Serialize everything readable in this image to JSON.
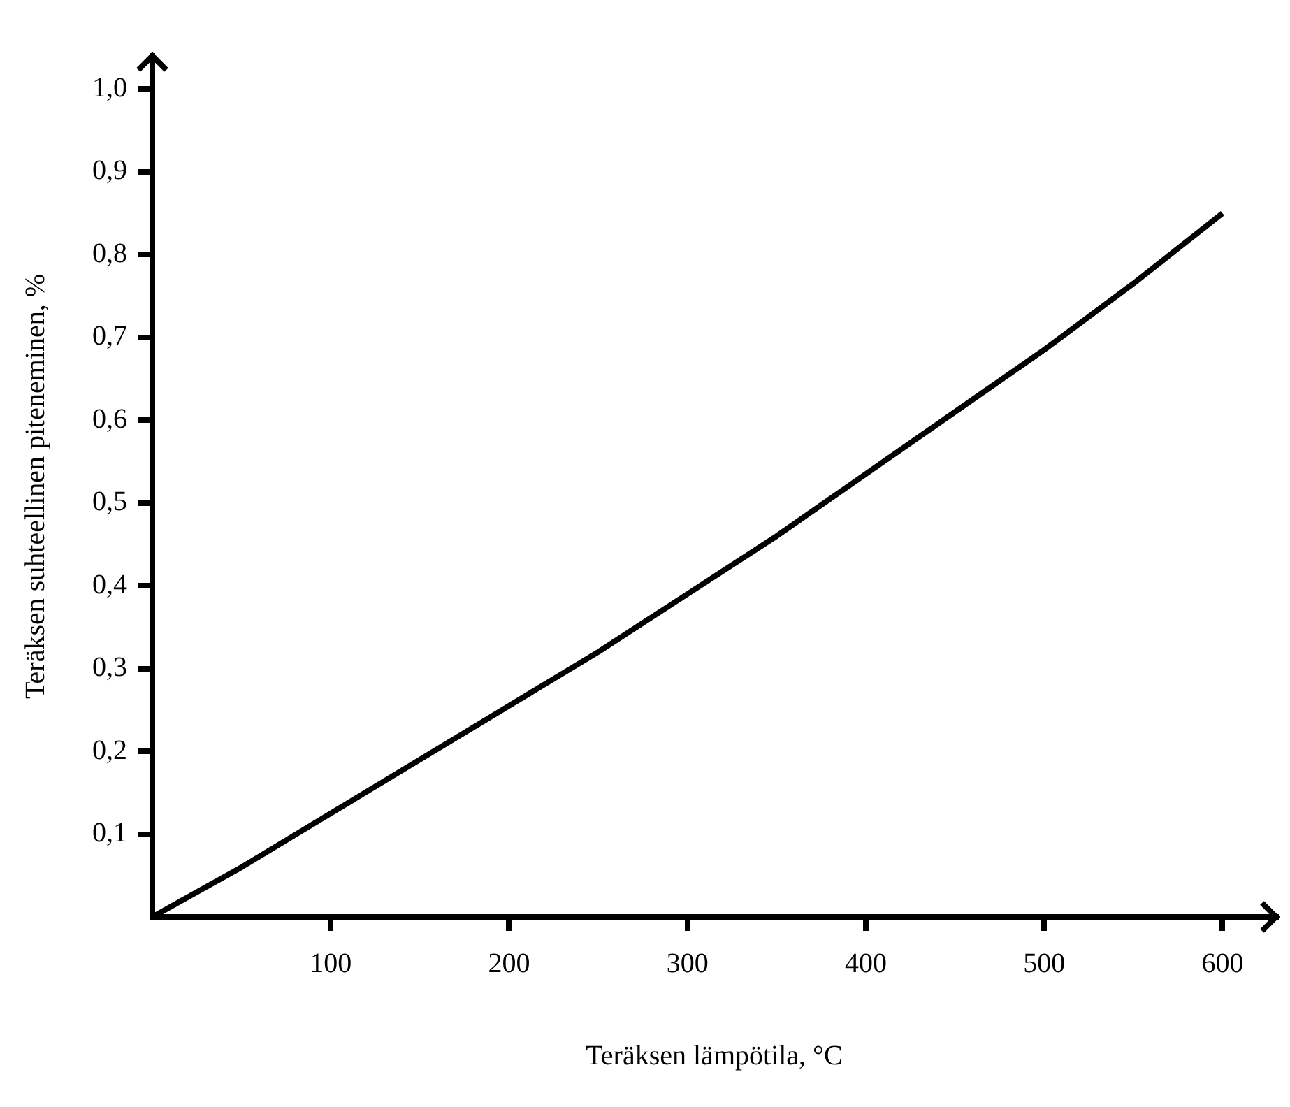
{
  "chart_data": {
    "type": "line",
    "xlabel": "Teräksen lämpötila, °C",
    "ylabel": "Teräksen suhteellinen piteneminen, %",
    "x": [
      0,
      50,
      100,
      150,
      200,
      250,
      300,
      350,
      400,
      450,
      500,
      550,
      600
    ],
    "series": [
      {
        "color": "#000000",
        "values": [
          0,
          0.06,
          0.125,
          0.19,
          0.255,
          0.32,
          0.39,
          0.46,
          0.535,
          0.61,
          0.685,
          0.765,
          0.85
        ]
      }
    ],
    "xlim": [
      0,
      630
    ],
    "ylim": [
      0,
      1.04
    ],
    "xticks": [
      100,
      200,
      300,
      400,
      500,
      600
    ],
    "yticks": [
      {
        "value": 0.1,
        "label": "0,1"
      },
      {
        "value": 0.2,
        "label": "0,2"
      },
      {
        "value": 0.3,
        "label": "0,3"
      },
      {
        "value": 0.4,
        "label": "0,4"
      },
      {
        "value": 0.5,
        "label": "0,5"
      },
      {
        "value": 0.6,
        "label": "0,6"
      },
      {
        "value": 0.7,
        "label": "0,7"
      },
      {
        "value": 0.8,
        "label": "0,8"
      },
      {
        "value": 0.9,
        "label": "0,9"
      },
      {
        "value": 1.0,
        "label": "1,0"
      }
    ],
    "grid": false,
    "legend": false
  }
}
